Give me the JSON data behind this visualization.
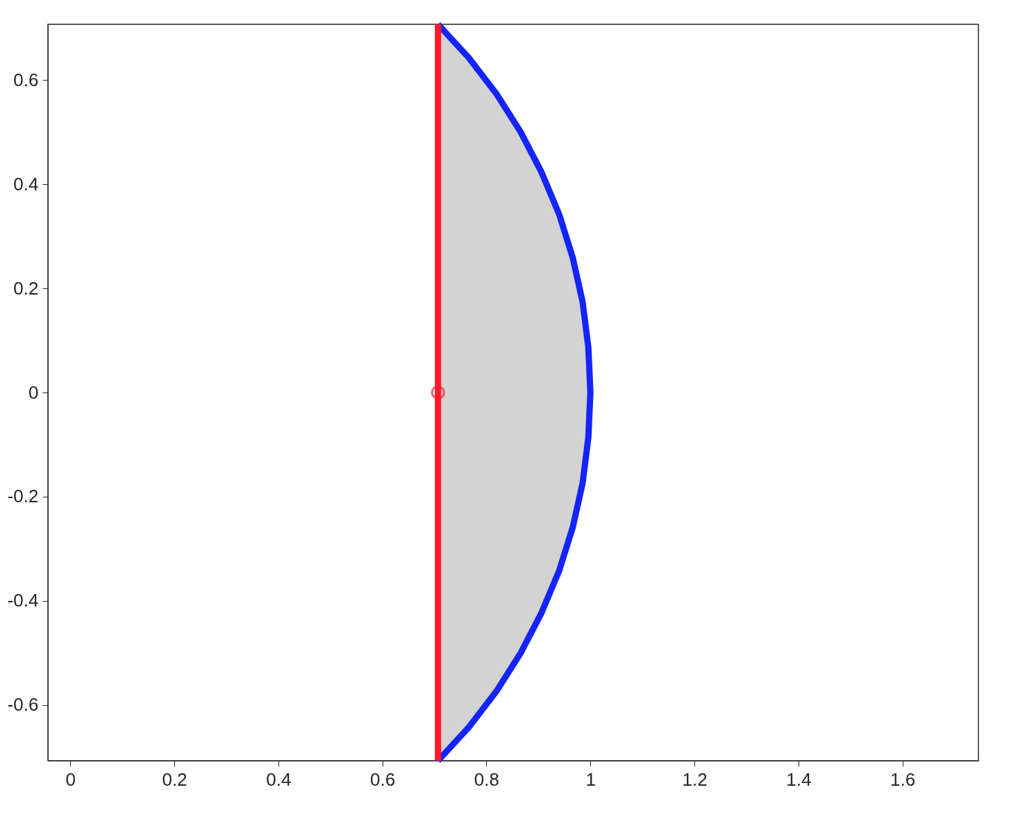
{
  "chart_data": {
    "type": "line",
    "xlim": [
      -0.043,
      1.746
    ],
    "ylim": [
      -0.707,
      0.707
    ],
    "xticks": [
      0,
      0.2,
      0.4,
      0.6,
      0.8,
      1,
      1.2,
      1.4,
      1.6
    ],
    "yticks": [
      -0.6,
      -0.4,
      -0.2,
      0,
      0.2,
      0.4,
      0.6
    ],
    "series": [
      {
        "type": "area",
        "color": "#d3d3d3",
        "x": [
          0.707,
          0.766,
          0.819,
          0.866,
          0.906,
          0.94,
          0.966,
          0.985,
          0.996,
          1.0
        ],
        "values": [
          0.707,
          0.643,
          0.574,
          0.5,
          0.423,
          0.342,
          0.259,
          0.174,
          0.087,
          0
        ]
      },
      {
        "type": "area",
        "color": "#d3d3d3",
        "x": [
          0.707,
          0.766,
          0.819,
          0.866,
          0.906,
          0.94,
          0.966,
          0.985,
          0.996,
          1.0
        ],
        "values": [
          -0.707,
          -0.643,
          -0.574,
          -0.5,
          -0.423,
          -0.342,
          -0.259,
          -0.174,
          -0.087,
          0
        ]
      },
      {
        "color": "#1424fa",
        "x": [
          0.707,
          0.766,
          0.819,
          0.866,
          0.906,
          0.94,
          0.966,
          0.985,
          0.996,
          1.0,
          0.996,
          0.985,
          0.966,
          0.94,
          0.906,
          0.866,
          0.819,
          0.766,
          0.707
        ],
        "values": [
          -0.707,
          -0.643,
          -0.574,
          -0.5,
          -0.423,
          -0.342,
          -0.259,
          -0.174,
          -0.087,
          0,
          0.087,
          0.174,
          0.259,
          0.342,
          0.423,
          0.5,
          0.574,
          0.643,
          0.707
        ]
      },
      {
        "color": "#ff1a26",
        "x": [
          0.707,
          0.707
        ],
        "values": [
          -0.707,
          0.707
        ]
      },
      {
        "type": "scatter",
        "color": "#ff1a26",
        "marker": "circle",
        "x": [
          0.707
        ],
        "values": [
          0
        ]
      }
    ]
  }
}
